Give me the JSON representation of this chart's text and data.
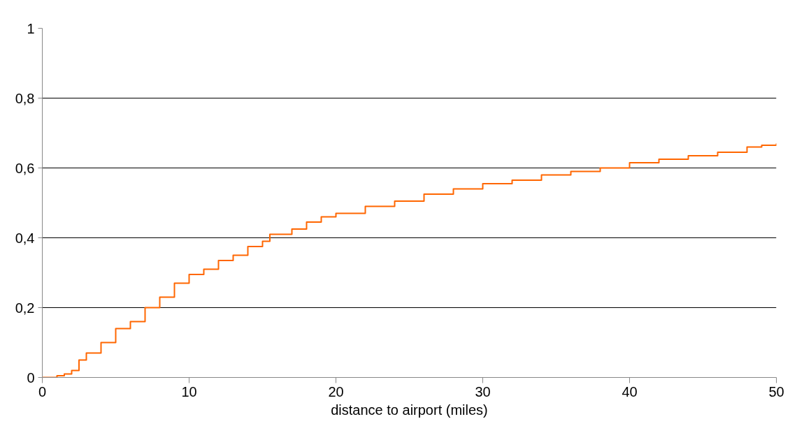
{
  "chart_data": {
    "type": "step",
    "xlabel": "distance to airport (miles)",
    "x": [
      0,
      1,
      1.5,
      2,
      2.5,
      3,
      4,
      5,
      6,
      7,
      8,
      9,
      10,
      11,
      12,
      13,
      14,
      15,
      15.5,
      17,
      18,
      19,
      20,
      22,
      24,
      26,
      28,
      30,
      32,
      34,
      36,
      38,
      40,
      42,
      44,
      46,
      48,
      49,
      50
    ],
    "series": [
      {
        "color": "#ff6600",
        "values": [
          0,
          0.005,
          0.01,
          0.02,
          0.05,
          0.07,
          0.1,
          0.14,
          0.16,
          0.2,
          0.23,
          0.27,
          0.295,
          0.31,
          0.335,
          0.35,
          0.375,
          0.39,
          0.41,
          0.425,
          0.445,
          0.46,
          0.47,
          0.49,
          0.505,
          0.525,
          0.54,
          0.555,
          0.565,
          0.58,
          0.59,
          0.6,
          0.615,
          0.625,
          0.635,
          0.645,
          0.66,
          0.665,
          0.67
        ]
      }
    ],
    "xlim": [
      0,
      50
    ],
    "xticks": [
      0,
      10,
      20,
      30,
      40,
      50
    ],
    "ylim": [
      0,
      1
    ],
    "yticks": [
      0,
      {
        "value": 0.2,
        "label": "0,2"
      },
      {
        "value": 0.4,
        "label": "0,4"
      },
      {
        "value": 0.6,
        "label": "0,6"
      },
      {
        "value": 0.8,
        "label": "0,8"
      },
      1
    ],
    "grid": "y"
  }
}
